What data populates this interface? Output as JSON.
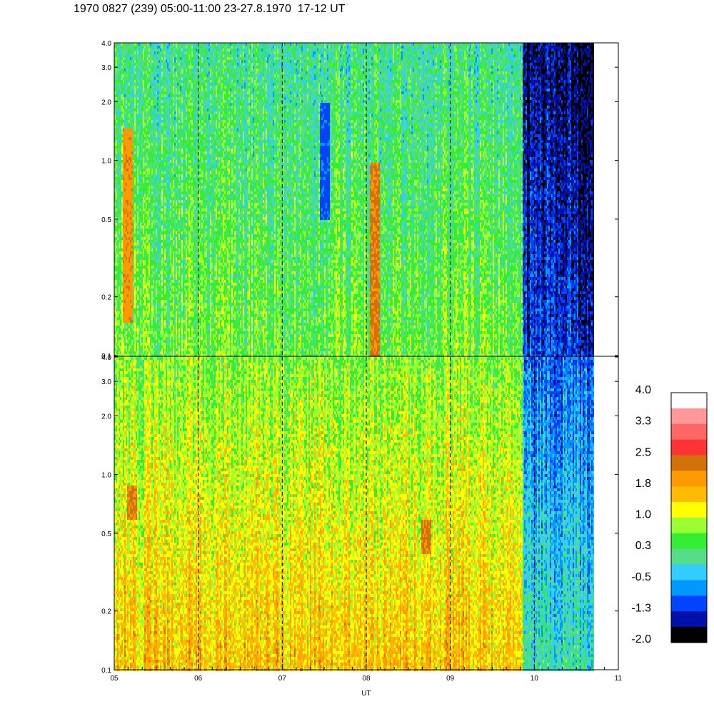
{
  "title": "1970 0827 (239) 05:00-11:00 23-27.8.1970  17-12 UT",
  "chart_data": {
    "type": "heatmap",
    "panels": [
      {
        "name": "",
        "xlim": [
          5,
          11
        ],
        "ylim": [
          0.1,
          4.0
        ],
        "yscale": "log",
        "yticks": [
          "0.1",
          "0.2",
          "0.5",
          "1.0",
          "2.0",
          "3.0",
          "4.0"
        ],
        "ytick_values": [
          0.1,
          0.2,
          0.5,
          1.0,
          2.0,
          3.0,
          4.0
        ],
        "data_end_hour": 10.7,
        "regimes": [
          {
            "x_start": 5.0,
            "x_end": 9.85,
            "typical_value": 0.6,
            "note": "green/yellow background"
          },
          {
            "x_start": 9.85,
            "x_end": 10.7,
            "typical_value": -1.2,
            "note": "blue region"
          }
        ],
        "bands": [
          {
            "x": 7.5,
            "y_from": 0.5,
            "y_to": 2.0,
            "value": -1.0
          },
          {
            "x": 5.15,
            "y_from": 0.15,
            "y_to": 1.5,
            "value": 2.0
          },
          {
            "x": 8.1,
            "y_from": 0.1,
            "y_to": 1.0,
            "value": 2.2
          }
        ]
      },
      {
        "name": "",
        "xlim": [
          5,
          11
        ],
        "ylim": [
          0.1,
          4.0
        ],
        "yscale": "log",
        "yticks": [
          "0.1",
          "0.2",
          "0.5",
          "1.0",
          "2.0",
          "3.0",
          "4.0"
        ],
        "ytick_values": [
          0.1,
          0.2,
          0.5,
          1.0,
          2.0,
          3.0,
          4.0
        ],
        "data_end_hour": 10.7,
        "regimes": [
          {
            "x_start": 5.0,
            "x_end": 9.85,
            "typical_value": 1.6,
            "note": "orange background"
          },
          {
            "x_start": 9.85,
            "x_end": 10.7,
            "typical_value": 0.0,
            "note": "cyan/green region"
          }
        ],
        "bands": [
          {
            "x": 5.2,
            "y_from": 0.6,
            "y_to": 0.9,
            "value": 2.2
          },
          {
            "x": 8.7,
            "y_from": 0.4,
            "y_to": 0.6,
            "value": 2.2
          }
        ]
      }
    ],
    "xticks": [
      "05",
      "06",
      "07",
      "08",
      "09",
      "10",
      "11"
    ],
    "xtick_values": [
      5,
      6,
      7,
      8,
      9,
      10,
      11
    ],
    "xlabel": "UT",
    "dashed_lines_at": [
      6,
      7,
      8,
      9,
      10
    ],
    "colorbar": {
      "labels": [
        "4.0",
        "3.3",
        "2.5",
        "1.8",
        "1.0",
        "0.3",
        "-0.5",
        "-1.3",
        "-2.0"
      ],
      "colors": [
        "#ffffff",
        "#ff9999",
        "#ff6666",
        "#ff3333",
        "#d2700a",
        "#ff9900",
        "#ffbb00",
        "#ffff00",
        "#99ff33",
        "#33ee33",
        "#55dd88",
        "#33ccff",
        "#0099ff",
        "#0044ff",
        "#0011aa",
        "#000000"
      ]
    }
  }
}
